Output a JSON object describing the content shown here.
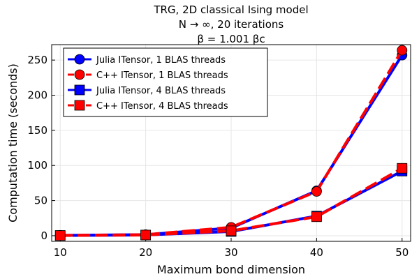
{
  "chart_data": {
    "type": "line",
    "title": [
      "TRG, 2D classical Ising model",
      "N → ∞, 20 iterations",
      "β = 1.001 βc"
    ],
    "xlabel": "Maximum bond dimension",
    "ylabel": "Computation time (seconds)",
    "xlim": [
      9,
      51
    ],
    "ylim": [
      -8,
      272
    ],
    "xticks": [
      10,
      20,
      30,
      40,
      50
    ],
    "yticks": [
      0,
      50,
      100,
      150,
      200,
      250
    ],
    "grid": true,
    "legend_position": "top-left",
    "x": [
      10,
      20,
      30,
      40,
      50
    ],
    "series": [
      {
        "name": "Julia ITensor, 1 BLAS threads",
        "color": "#0000ff",
        "marker": "circle",
        "dash": "solid",
        "values": [
          0.5,
          1.5,
          11,
          64,
          257
        ]
      },
      {
        "name": "C++ ITensor, 1 BLAS threads",
        "color": "#ff0000",
        "marker": "circle",
        "dash": "dashed",
        "values": [
          0.5,
          1.5,
          12,
          63,
          264
        ]
      },
      {
        "name": "Julia ITensor, 4 BLAS threads",
        "color": "#0000ff",
        "marker": "square",
        "dash": "solid",
        "values": [
          0.3,
          1.0,
          6,
          28,
          92
        ]
      },
      {
        "name": "C++ ITensor, 4 BLAS threads",
        "color": "#ff0000",
        "marker": "square",
        "dash": "dashed",
        "values": [
          0.3,
          1.0,
          7,
          27,
          96
        ]
      }
    ]
  }
}
